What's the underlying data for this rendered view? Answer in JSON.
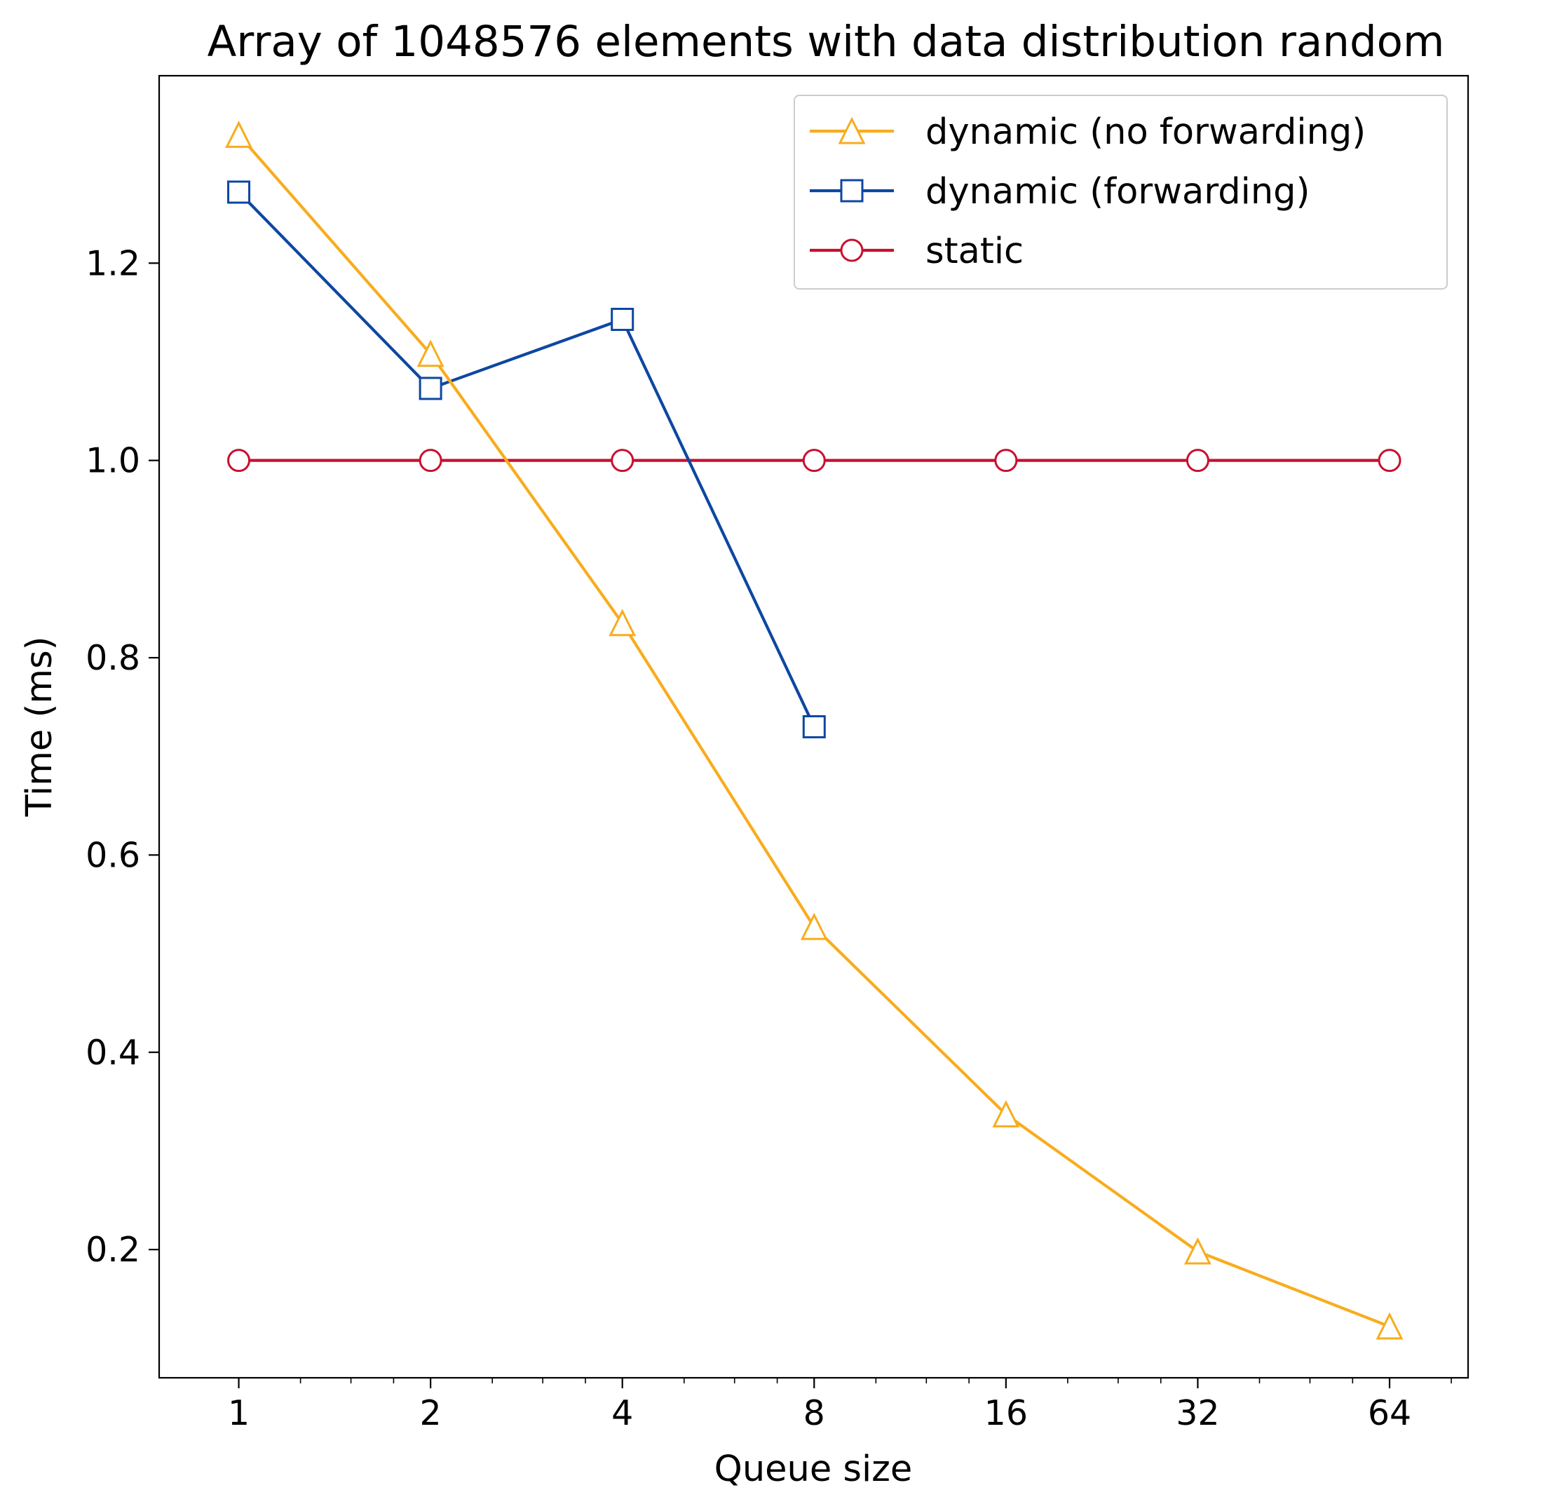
{
  "chart_data": {
    "type": "line",
    "title": "Array of 1048576 elements with data distribution random",
    "xlabel": "Queue size",
    "ylabel": "Time (ms)",
    "xscale": "log2",
    "x": [
      1,
      2,
      4,
      8,
      16,
      32,
      64
    ],
    "xticks": [
      "1",
      "2",
      "4",
      "8",
      "16",
      "32",
      "64"
    ],
    "yticks": [
      "0.2",
      "0.4",
      "0.6",
      "0.8",
      "1.0",
      "1.2"
    ],
    "ytick_values": [
      0.2,
      0.4,
      0.6,
      0.8,
      1.0,
      1.2
    ],
    "xlim": [
      0.75,
      85
    ],
    "ylim": [
      0.07,
      1.39
    ],
    "grid": false,
    "legend_position": "top-right",
    "series": [
      {
        "name": "dynamic (no forwarding)",
        "color": "#f8ac1d",
        "marker": "triangle",
        "x": [
          1,
          2,
          4,
          8,
          16,
          32,
          64
        ],
        "values": [
          1.33,
          1.108,
          0.835,
          0.527,
          0.337,
          0.198,
          0.122
        ]
      },
      {
        "name": "dynamic (forwarding)",
        "color": "#0d47a1",
        "marker": "square",
        "x": [
          1,
          2,
          4,
          8
        ],
        "values": [
          1.272,
          1.073,
          1.143,
          0.73
        ]
      },
      {
        "name": "static",
        "color": "#c8102e",
        "marker": "circle",
        "x": [
          1,
          2,
          4,
          8,
          16,
          32,
          64
        ],
        "values": [
          1.0,
          1.0,
          1.0,
          1.0,
          1.0,
          1.0,
          1.0
        ]
      }
    ]
  }
}
